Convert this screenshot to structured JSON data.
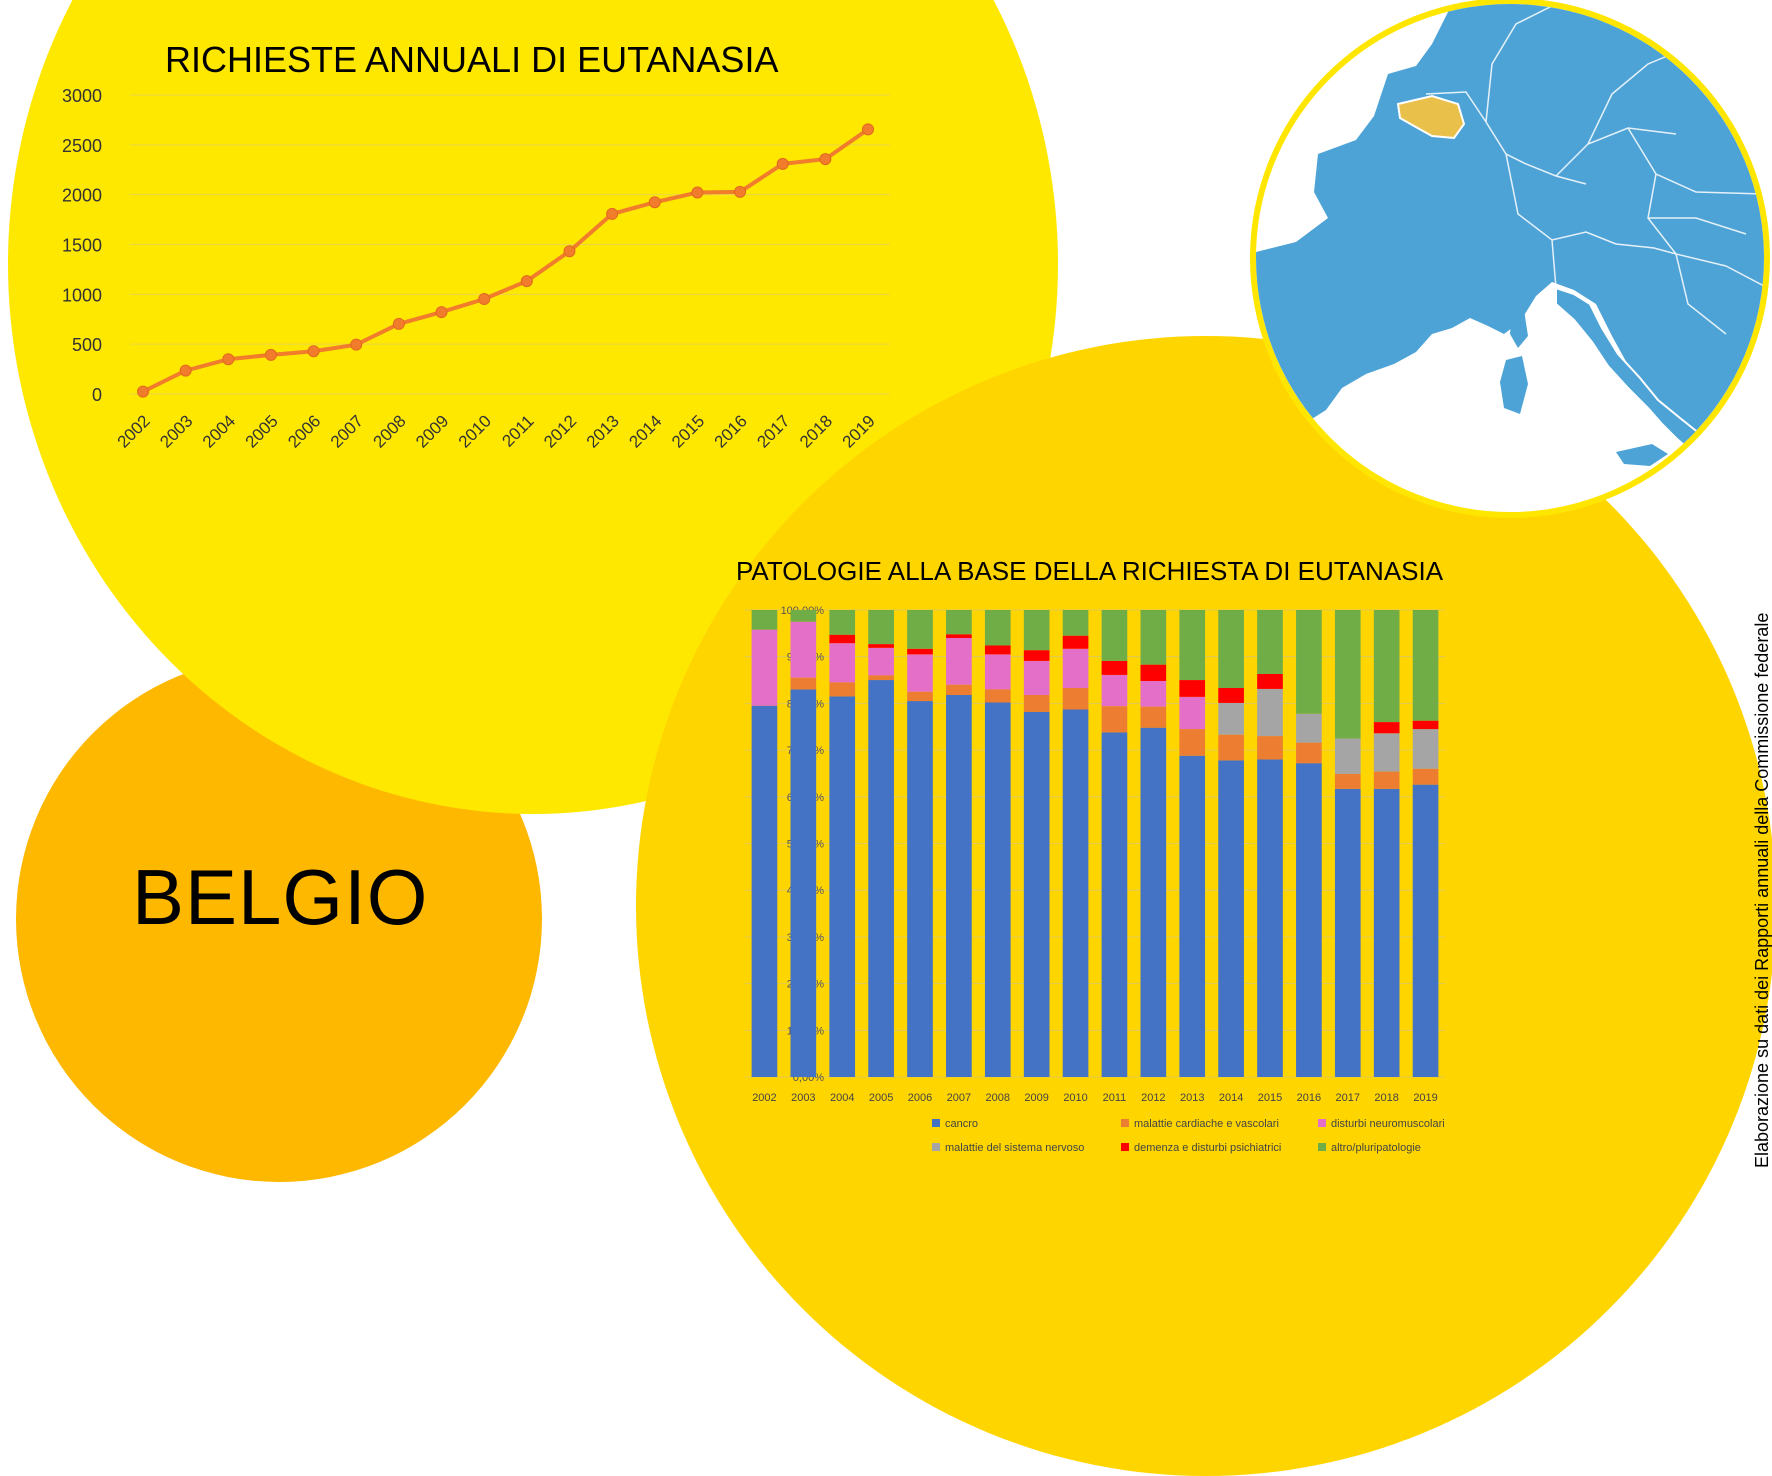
{
  "labels": {
    "country": "BELGIO",
    "source_note": "Elaborazione su dati dei Rapporti annuali della Commissione federale"
  },
  "colors": {
    "orange_circle": "#FFB800",
    "yellow_circle": "#FFE800",
    "gold_circle": "#FFD500",
    "line": "#F07C2C",
    "map_sea": "#FFFFFF",
    "map_land": "#4EA3D6",
    "map_highlight": "#E8C04A"
  },
  "map": {
    "highlighted_country": "Belgium"
  },
  "chart_data": [
    {
      "type": "line",
      "title": "RICHIESTE ANNUALI DI EUTANASIA",
      "x": [
        "2002",
        "2003",
        "2004",
        "2005",
        "2006",
        "2007",
        "2008",
        "2009",
        "2010",
        "2011",
        "2012",
        "2013",
        "2014",
        "2015",
        "2016",
        "2017",
        "2018",
        "2019"
      ],
      "series": [
        {
          "values": [
            24,
            235,
            349,
            393,
            429,
            495,
            704,
            822,
            953,
            1133,
            1432,
            1807,
            1924,
            2022,
            2028,
            2309,
            2357,
            2655
          ]
        }
      ],
      "yticks": [
        "0",
        "500",
        "1000",
        "1500",
        "2000",
        "2500",
        "3000"
      ],
      "ylim": [
        0,
        3000
      ],
      "grid": true,
      "legend": "none"
    },
    {
      "type": "bar",
      "stacked": true,
      "title": "PATOLOGIE ALLA BASE DELLA RICHIESTA DI EUTANASIA",
      "categories": [
        "2002",
        "2003",
        "2004",
        "2005",
        "2006",
        "2007",
        "2008",
        "2009",
        "2010",
        "2011",
        "2012",
        "2013",
        "2014",
        "2015",
        "2016",
        "2017",
        "2018",
        "2019"
      ],
      "yticks": [
        "0,00%",
        "10,00%",
        "20,00%",
        "30,00%",
        "40,00%",
        "50,00%",
        "60,00%",
        "70,00%",
        "80,00%",
        "90,00%",
        "100,00%"
      ],
      "ylim": [
        0,
        100
      ],
      "grid": true,
      "legend": "bottom",
      "series": [
        {
          "name": "cancro",
          "color": "#4472C4",
          "values": [
            79.5,
            83,
            81.5,
            85,
            80.5,
            81.8,
            80.2,
            78.2,
            78.7,
            73.8,
            74.8,
            68.8,
            67.8,
            68,
            67.2,
            61.7,
            61.7,
            62.6
          ]
        },
        {
          "name": "malattie cardiache e vascolari",
          "color": "#ED7D31",
          "values": [
            0,
            2.5,
            3,
            1,
            2,
            2.2,
            2.8,
            3.6,
            4.6,
            5.6,
            4.5,
            5.7,
            5.5,
            5,
            4.4,
            3.2,
            3.7,
            3.4
          ]
        },
        {
          "name": "disturbi neuromuscolari",
          "color": "#E46FC9",
          "values": [
            16.3,
            12,
            8.4,
            5.9,
            8,
            10,
            7.5,
            7.3,
            8.4,
            6.7,
            5.5,
            6.9,
            0,
            0,
            0,
            0,
            0,
            0
          ]
        },
        {
          "name": "malattie del sistema nervoso",
          "color": "#A5A5A5",
          "values": [
            0,
            0,
            0,
            0,
            0,
            0,
            0,
            0,
            0,
            0,
            0,
            0,
            6.8,
            10.1,
            6.2,
            7.6,
            8.2,
            8.5
          ]
        },
        {
          "name": "demenza e disturbi psichiatrici",
          "color": "#FF0000",
          "values": [
            0,
            0,
            1.8,
            0.8,
            1.2,
            0.8,
            1.9,
            2.3,
            2.8,
            3,
            3.5,
            3.6,
            3.2,
            3.2,
            0,
            0,
            2.4,
            1.8
          ]
        },
        {
          "name": "altro/pluripatologie",
          "color": "#70AD47",
          "values": [
            4.2,
            2.5,
            5.3,
            7.3,
            8.3,
            5.2,
            7.6,
            8.6,
            5.5,
            10.9,
            11.7,
            15,
            16.7,
            13.7,
            22.2,
            27.5,
            24,
            23.7
          ]
        }
      ]
    }
  ]
}
